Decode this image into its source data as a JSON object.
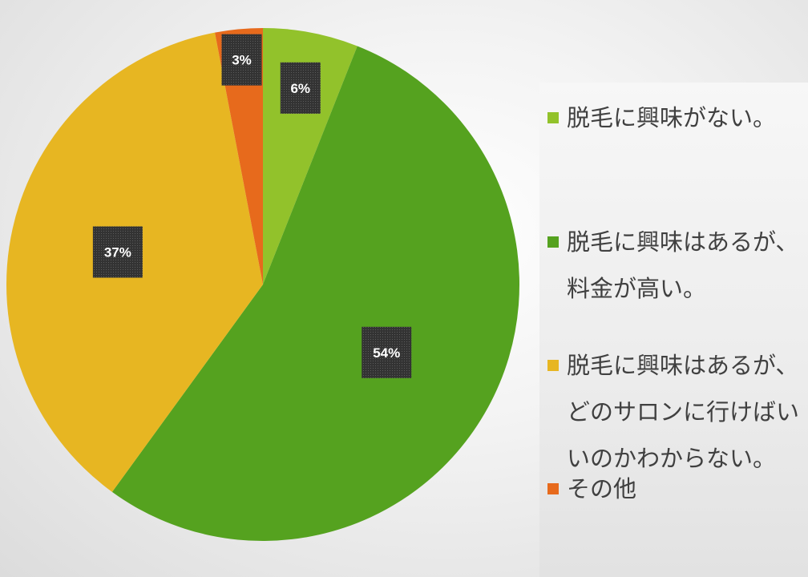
{
  "chart_data": {
    "type": "pie",
    "title": "",
    "slices": [
      {
        "label": "脱毛に興味がない。",
        "value": 6,
        "data_label": "6%",
        "color": "#92c22b"
      },
      {
        "label": "脱毛に興味はあるが、料金が高い。",
        "value": 54,
        "data_label": "54%",
        "color": "#55a21f"
      },
      {
        "label": "脱毛に興味はあるが、どのサロンに行けばいいのかわからない。",
        "value": 37,
        "data_label": "37%",
        "color": "#e7b622"
      },
      {
        "label": "その他",
        "value": 3,
        "data_label": "3%",
        "color": "#e76a1c"
      }
    ],
    "start_angle": "12 o'clock",
    "direction": "clockwise",
    "legend_position": "right"
  }
}
